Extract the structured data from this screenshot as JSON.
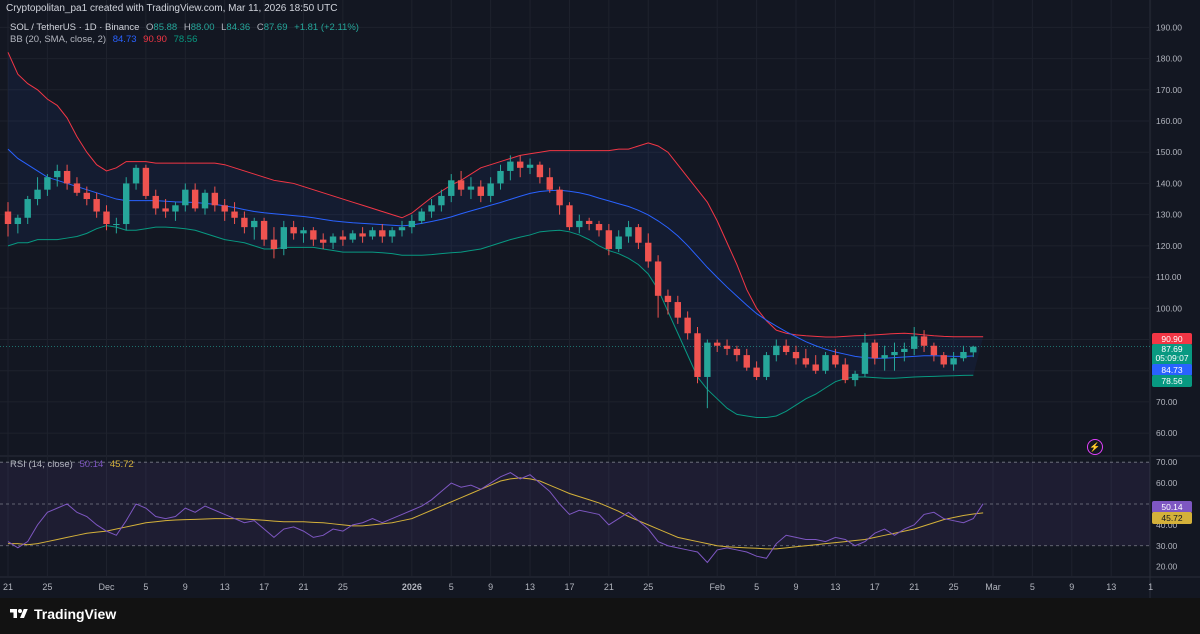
{
  "header": {
    "caption": "Cryptopolitan_pa1 created with TradingView.com, Mar 11, 2026 18:50 UTC",
    "symbol": "SOL / TetherUS · 1D · Binance",
    "ohlc": {
      "o_label": "O",
      "o": "85.88",
      "h_label": "H",
      "h": "88.00",
      "l_label": "L",
      "l": "84.36",
      "c_label": "C",
      "c": "87.69",
      "change": "+1.81 (+2.11%)"
    },
    "bb": {
      "label": "BB (20, SMA, close, 2)",
      "basis": "84.73",
      "upper": "90.90",
      "lower": "78.56"
    },
    "rsi": {
      "label": "RSI (14, close)",
      "rsi": "50.14",
      "ma": "45.72"
    }
  },
  "price_tags": {
    "upper": "90.90",
    "last": "87.69",
    "countdown": "05:09:07",
    "basis": "84.73",
    "lower": "78.56",
    "rsi": "50.14",
    "rsi_ma": "45.72"
  },
  "colors": {
    "background": "#131722",
    "up": "#26a69a",
    "down": "#ef5350",
    "bb_basis": "#2962ff",
    "bb_upper": "#f23645",
    "bb_lower": "#089981",
    "bb_fill": "#2962ff",
    "rsi_line": "#7e57c2",
    "rsi_ma": "#d4b13a",
    "grid": "#1e222d",
    "axis_text": "#b2b5be"
  },
  "footer": {
    "brand": "TradingView"
  },
  "chart_data": [
    {
      "type": "candlestick",
      "title": "SOL / TetherUS · 1D · Binance",
      "price_axis_ticks": [
        190,
        180,
        170,
        160,
        150,
        140,
        130,
        120,
        110,
        100,
        90,
        80,
        70,
        60
      ],
      "ylim": [
        53,
        193
      ],
      "x_axis_ticks": [
        "21",
        "25",
        "Dec",
        "5",
        "9",
        "13",
        "17",
        "21",
        "25",
        "2026",
        "5",
        "9",
        "13",
        "17",
        "21",
        "25",
        "Feb",
        "5",
        "9",
        "13",
        "17",
        "21",
        "25",
        "Mar",
        "5",
        "9",
        "13",
        "1"
      ],
      "x_axis_tick_day_index": [
        0,
        4,
        10,
        14,
        18,
        22,
        26,
        30,
        34,
        41,
        45,
        49,
        53,
        57,
        61,
        65,
        72,
        76,
        80,
        84,
        88,
        92,
        96,
        100,
        104,
        108,
        112,
        116
      ],
      "ohlc": [
        [
          131,
          134,
          123,
          127
        ],
        [
          127,
          130,
          124,
          129
        ],
        [
          129,
          136,
          127,
          135
        ],
        [
          135,
          142,
          133,
          138
        ],
        [
          138,
          143,
          136,
          142
        ],
        [
          142,
          146,
          139,
          144
        ],
        [
          144,
          146,
          138,
          140
        ],
        [
          140,
          142,
          136,
          137
        ],
        [
          137,
          139,
          133,
          135
        ],
        [
          135,
          137,
          129,
          131
        ],
        [
          131,
          133,
          125,
          127
        ],
        [
          127,
          129,
          124,
          127
        ],
        [
          127,
          142,
          125,
          140
        ],
        [
          140,
          146,
          138,
          145
        ],
        [
          145,
          146,
          135,
          136
        ],
        [
          136,
          138,
          130,
          132
        ],
        [
          132,
          135,
          129,
          131
        ],
        [
          131,
          134,
          128,
          133
        ],
        [
          133,
          140,
          131,
          138
        ],
        [
          138,
          140,
          131,
          132
        ],
        [
          132,
          138,
          130,
          137
        ],
        [
          137,
          139,
          131,
          133
        ],
        [
          133,
          135,
          128,
          131
        ],
        [
          131,
          134,
          127,
          129
        ],
        [
          129,
          131,
          124,
          126
        ],
        [
          126,
          129,
          122,
          128
        ],
        [
          128,
          129,
          120,
          122
        ],
        [
          122,
          126,
          116,
          119
        ],
        [
          119,
          128,
          117,
          126
        ],
        [
          126,
          128,
          122,
          124
        ],
        [
          124,
          126,
          121,
          125
        ],
        [
          125,
          126,
          120,
          122
        ],
        [
          122,
          124,
          119,
          121
        ],
        [
          121,
          124,
          119,
          123
        ],
        [
          123,
          125,
          120,
          122
        ],
        [
          122,
          125,
          121,
          124
        ],
        [
          124,
          126,
          121,
          123
        ],
        [
          123,
          126,
          122,
          125
        ],
        [
          125,
          127,
          121,
          123
        ],
        [
          123,
          126,
          121,
          125
        ],
        [
          125,
          128,
          123,
          126
        ],
        [
          126,
          130,
          124,
          128
        ],
        [
          128,
          132,
          127,
          131
        ],
        [
          131,
          135,
          129,
          133
        ],
        [
          133,
          138,
          131,
          136
        ],
        [
          136,
          143,
          134,
          141
        ],
        [
          141,
          144,
          136,
          138
        ],
        [
          138,
          142,
          135,
          139
        ],
        [
          139,
          141,
          134,
          136
        ],
        [
          136,
          142,
          134,
          140
        ],
        [
          140,
          146,
          138,
          144
        ],
        [
          144,
          149,
          141,
          147
        ],
        [
          147,
          149,
          142,
          145
        ],
        [
          145,
          148,
          143,
          146
        ],
        [
          146,
          147,
          140,
          142
        ],
        [
          142,
          145,
          137,
          138
        ],
        [
          138,
          139,
          130,
          133
        ],
        [
          133,
          134,
          125,
          126
        ],
        [
          126,
          130,
          124,
          128
        ],
        [
          128,
          129,
          125,
          127
        ],
        [
          127,
          128,
          123,
          125
        ],
        [
          125,
          127,
          117,
          119
        ],
        [
          119,
          125,
          118,
          123
        ],
        [
          123,
          128,
          121,
          126
        ],
        [
          126,
          127,
          119,
          121
        ],
        [
          121,
          124,
          113,
          115
        ],
        [
          115,
          117,
          97,
          104
        ],
        [
          104,
          106,
          98,
          102
        ],
        [
          102,
          104,
          95,
          97
        ],
        [
          97,
          99,
          90,
          92
        ],
        [
          92,
          94,
          76,
          78
        ],
        [
          78,
          90,
          68,
          89
        ],
        [
          89,
          90,
          86,
          88
        ],
        [
          88,
          90,
          85,
          87
        ],
        [
          87,
          88,
          83,
          85
        ],
        [
          85,
          87,
          80,
          81
        ],
        [
          81,
          83,
          77,
          78
        ],
        [
          78,
          86,
          77,
          85
        ],
        [
          85,
          90,
          83,
          88
        ],
        [
          88,
          90,
          85,
          86
        ],
        [
          86,
          88,
          82,
          84
        ],
        [
          84,
          87,
          81,
          82
        ],
        [
          82,
          85,
          79,
          80
        ],
        [
          80,
          86,
          79,
          85
        ],
        [
          85,
          87,
          81,
          82
        ],
        [
          82,
          84,
          76,
          77
        ],
        [
          77,
          80,
          75,
          79
        ],
        [
          79,
          92,
          78,
          89
        ],
        [
          89,
          90,
          82,
          84
        ],
        [
          84,
          88,
          80,
          85
        ],
        [
          85,
          89,
          80,
          86
        ],
        [
          86,
          89,
          83,
          87
        ],
        [
          87,
          94,
          85,
          91
        ],
        [
          91,
          93,
          86,
          88
        ],
        [
          88,
          89,
          83,
          85
        ],
        [
          85,
          86,
          81,
          82
        ],
        [
          82,
          86,
          80,
          84
        ],
        [
          84,
          88,
          83,
          86
        ],
        [
          85.88,
          88.0,
          84.36,
          87.69
        ]
      ],
      "bb_basis": [
        151,
        148,
        146,
        144,
        142,
        141,
        140,
        139,
        138,
        137,
        136,
        135,
        134.5,
        134.5,
        134.5,
        134.5,
        134.3,
        134.1,
        134,
        133.9,
        133.6,
        133.3,
        132.8,
        132.3,
        131.6,
        131,
        130.6,
        130.3,
        130,
        129.7,
        129.4,
        129,
        128.5,
        128,
        127.7,
        127.4,
        127.2,
        127,
        126.8,
        126.6,
        126.4,
        126.7,
        127.2,
        127.8,
        128.5,
        129.3,
        130.3,
        131.2,
        132.1,
        133,
        133.9,
        134.9,
        135.9,
        136.8,
        137.4,
        137.7,
        137.8,
        137.5,
        137,
        136.3,
        135.3,
        134.4,
        133.5,
        132.6,
        131.4,
        129.9,
        128,
        125.8,
        123.2,
        120.1,
        116.6,
        113.1,
        109.9,
        106.8,
        103.9,
        101,
        98.3,
        96.2,
        94.3,
        92.5,
        90.9,
        89.3,
        88,
        86.9,
        86,
        85.3,
        84.6,
        84.2,
        84,
        84,
        84.2,
        84.4,
        84.6,
        84.8,
        84.8,
        84.7,
        84.6,
        84.6,
        84.73
      ],
      "bb_upper": [
        182,
        175,
        172,
        170,
        167,
        165,
        161,
        155,
        150,
        146,
        144,
        145,
        147,
        147,
        147,
        146.5,
        146.5,
        146.5,
        146.5,
        146.5,
        146.5,
        146.5,
        146,
        145,
        144,
        143,
        142,
        141,
        140.5,
        140,
        139,
        138,
        137,
        136,
        135,
        134,
        133,
        132,
        131,
        130,
        129,
        130.5,
        133,
        135.5,
        137.5,
        139.5,
        141,
        143,
        145,
        146,
        147,
        148,
        149,
        149.5,
        150,
        150.5,
        150.5,
        150.5,
        150.5,
        150.5,
        150.5,
        150.5,
        151,
        151,
        152,
        153,
        152,
        150,
        146,
        142,
        138,
        134,
        128,
        121,
        114,
        106,
        100,
        96,
        93,
        92,
        91.5,
        91.2,
        91,
        90.8,
        90.8,
        91,
        91.2,
        91.3,
        91.5,
        91.7,
        91.9,
        92,
        91.8,
        91.5,
        91.2,
        91,
        90.9,
        90.9,
        90.9,
        90.9
      ],
      "bb_lower": [
        120,
        121,
        121,
        122,
        122,
        122,
        122.5,
        123,
        124,
        125.5,
        126.5,
        126,
        125,
        125,
        125.5,
        126,
        126,
        125.8,
        125.5,
        125,
        124,
        123,
        122,
        121.5,
        121,
        120,
        119,
        119,
        119.5,
        119.5,
        119.5,
        119.5,
        119,
        118.5,
        118,
        118,
        118,
        118,
        117.8,
        117.5,
        117,
        117,
        117,
        117.2,
        117.5,
        117.8,
        118,
        118.5,
        119,
        120,
        121,
        122,
        122.8,
        123.5,
        124.5,
        124.8,
        125,
        124.5,
        123.5,
        122,
        120,
        118.5,
        117.5,
        116,
        114,
        111,
        106,
        99,
        92,
        85,
        78,
        74,
        71,
        68,
        66,
        65.5,
        65,
        65,
        65.5,
        67,
        69,
        71,
        72.5,
        74.5,
        76.5,
        77.5,
        78,
        78,
        77.8,
        77.6,
        77.6,
        77.8,
        78,
        78.1,
        78.2,
        78.3,
        78.4,
        78.5,
        78.56
      ],
      "last_price": 87.69
    },
    {
      "type": "line",
      "title": "RSI (14, close)",
      "ylim": [
        16,
        72
      ],
      "axis_ticks": [
        70,
        60,
        50,
        40,
        30,
        20
      ],
      "bands": [
        70,
        50,
        30
      ],
      "series": [
        {
          "name": "RSI",
          "values": [
            32,
            29,
            32,
            40,
            46,
            48,
            50,
            46,
            44,
            40,
            37,
            35,
            42,
            50,
            48,
            44,
            43,
            44,
            48,
            46,
            49,
            47,
            45,
            43,
            41,
            42,
            38,
            34,
            38,
            39,
            37,
            34,
            35,
            38,
            37,
            40,
            41,
            43,
            41,
            43,
            45,
            47,
            49,
            52,
            56,
            60,
            58,
            59,
            57,
            60,
            63,
            65,
            62,
            64,
            60,
            56,
            50,
            45,
            47,
            46,
            45,
            40,
            43,
            46,
            42,
            38,
            32,
            30,
            29,
            28,
            27,
            22,
            28,
            29,
            28,
            27,
            25,
            24,
            31,
            35,
            34,
            33,
            33,
            32,
            34,
            33,
            30,
            32,
            36,
            38,
            35,
            38,
            40,
            45,
            46,
            43,
            42,
            41,
            43,
            50.14
          ]
        },
        {
          "name": "MA",
          "values": [
            31,
            31,
            30.5,
            31,
            32,
            33,
            34,
            35,
            36,
            36.5,
            37,
            38,
            39,
            40,
            41,
            41.5,
            42,
            42.3,
            42.5,
            42.6,
            42.8,
            43,
            43,
            43,
            42.8,
            42.5,
            42.2,
            41.8,
            41.5,
            41.5,
            41.5,
            41.2,
            41,
            40.5,
            40,
            39.5,
            39.5,
            40,
            40.5,
            41,
            42,
            43,
            45,
            47,
            49,
            51,
            53,
            55,
            57,
            59,
            61,
            62,
            62.5,
            62,
            61,
            59,
            57,
            55,
            53.5,
            52,
            50.5,
            48.5,
            46.5,
            44,
            42,
            40,
            38,
            36,
            34,
            33,
            32,
            31,
            30,
            29.5,
            29.2,
            29,
            28.8,
            28.5,
            28.5,
            29,
            29.5,
            30,
            30.5,
            31,
            31.5,
            32,
            32.5,
            33,
            34,
            35,
            36,
            37,
            38,
            39.5,
            41,
            42.5,
            43.5,
            44.5,
            45.2,
            45.72
          ]
        }
      ]
    }
  ]
}
